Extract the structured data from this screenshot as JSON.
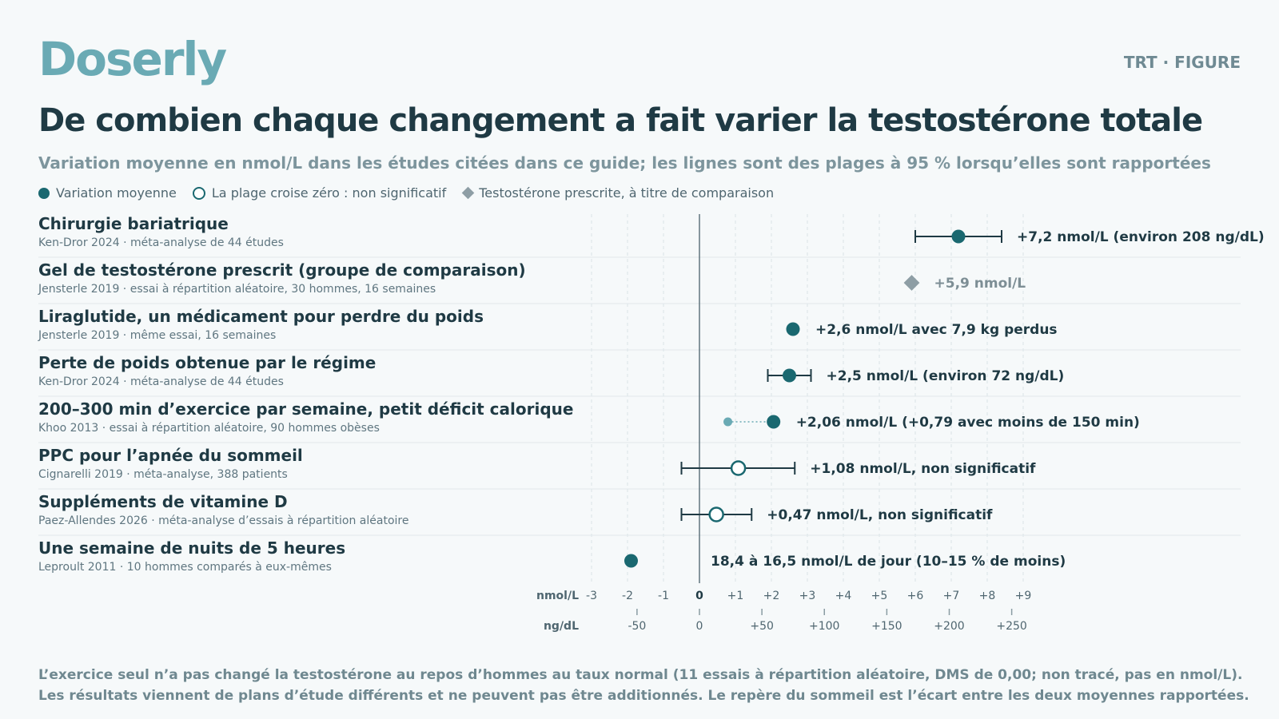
{
  "header": {
    "brand": "Doserly",
    "tag": "TRT · FIGURE",
    "title": "De combien chaque changement a fait varier la testostérone totale",
    "subtitle": "Variation moyenne en nmol/L dans les études citées dans ce guide; les lignes sont des plages à 95 % lorsqu’elles sont rapportées"
  },
  "legend": [
    {
      "marker": "filled",
      "label": "Variation moyenne"
    },
    {
      "marker": "open",
      "label": "La plage croise zéro : non significatif"
    },
    {
      "marker": "diamond",
      "label": "Testostérone prescrite, à titre de comparaison"
    }
  ],
  "colors": {
    "brand": "#6aaab4",
    "marker": "#1a6870",
    "marker_light": "#6aaab4",
    "comparison": "#8e9ea5",
    "text": "#1f3a44"
  },
  "chart_data": {
    "type": "forest",
    "x_unit": "nmol/L",
    "x_secondary_unit": "ng/dL",
    "xlim": [
      -3,
      9
    ],
    "x_ticks": [
      {
        "value": -3,
        "label": "-3"
      },
      {
        "value": -2,
        "label": "-2"
      },
      {
        "value": -1,
        "label": "-1"
      },
      {
        "value": 0,
        "label": "0"
      },
      {
        "value": 1,
        "label": "+1"
      },
      {
        "value": 2,
        "label": "+2"
      },
      {
        "value": 3,
        "label": "+3"
      },
      {
        "value": 4,
        "label": "+4"
      },
      {
        "value": 5,
        "label": "+5"
      },
      {
        "value": 6,
        "label": "+6"
      },
      {
        "value": 7,
        "label": "+7"
      },
      {
        "value": 8,
        "label": "+8"
      },
      {
        "value": 9,
        "label": "+9"
      }
    ],
    "secondary_ticks": [
      {
        "value": -50,
        "label": "-50"
      },
      {
        "value": 0,
        "label": "0"
      },
      {
        "value": 50,
        "label": "+50"
      },
      {
        "value": 100,
        "label": "+100"
      },
      {
        "value": 150,
        "label": "+150"
      },
      {
        "value": 200,
        "label": "+200"
      },
      {
        "value": 250,
        "label": "+250"
      }
    ],
    "ng_per_nmol": 28.8,
    "rows": [
      {
        "title": "Chirurgie bariatrique",
        "source": "Ken-Dror 2024 · méta-analyse de 44 études",
        "value": 7.2,
        "ci": [
          6.0,
          8.4
        ],
        "marker": "filled",
        "label": "+7,2 nmol/L (environ 208 ng/dL)"
      },
      {
        "title": "Gel de testostérone prescrit (groupe de comparaison)",
        "source": "Jensterle 2019 · essai à répartition aléatoire, 30 hommes, 16 semaines",
        "value": 5.9,
        "ci": null,
        "marker": "diamond",
        "label": "+5,9 nmol/L"
      },
      {
        "title": "Liraglutide, un médicament pour perdre du poids",
        "source": "Jensterle 2019 · même essai, 16 semaines",
        "value": 2.6,
        "ci": null,
        "marker": "filled",
        "label": "+2,6 nmol/L avec 7,9 kg perdus"
      },
      {
        "title": "Perte de poids obtenue par le régime",
        "source": "Ken-Dror 2024 · méta-analyse de 44 études",
        "value": 2.5,
        "ci": [
          1.9,
          3.1
        ],
        "marker": "filled",
        "label": "+2,5 nmol/L (environ 72 ng/dL)"
      },
      {
        "title": "200–300 min d’exercice par semaine, petit déficit calorique",
        "source": "Khoo 2013 · essai à répartition aléatoire, 90 hommes obèses",
        "value": 2.06,
        "ci": null,
        "secondary_value": 0.79,
        "marker": "filled",
        "label": "+2,06 nmol/L (+0,79 avec moins de 150 min)"
      },
      {
        "title": "PPC pour l’apnée du sommeil",
        "source": "Cignarelli 2019 · méta-analyse, 388 patients",
        "value": 1.08,
        "ci": [
          -0.5,
          2.65
        ],
        "marker": "open",
        "label": "+1,08 nmol/L, non significatif"
      },
      {
        "title": "Suppléments de vitamine D",
        "source": "Paez-Allendes 2026 · méta-analyse d’essais à répartition aléatoire",
        "value": 0.47,
        "ci": [
          -0.5,
          1.45
        ],
        "marker": "open",
        "label": "+0,47 nmol/L, non significatif"
      },
      {
        "title": "Une semaine de nuits de 5 heures",
        "source": "Leproult 2011 · 10 hommes comparés à eux-mêmes",
        "value": -1.9,
        "ci": null,
        "marker": "filled",
        "label": "18,4 à 16,5 nmol/L de jour (10–15 % de moins)"
      }
    ]
  },
  "footnote": {
    "line1": "L’exercice seul n’a pas changé la testostérone au repos d’hommes au taux normal (11 essais à répartition aléatoire, DMS de 0,00; non tracé, pas en nmol/L).",
    "line2": "Les résultats viennent de plans d’étude différents et ne peuvent pas être additionnés. Le repère du sommeil est l’écart entre les deux moyennes rapportées."
  }
}
